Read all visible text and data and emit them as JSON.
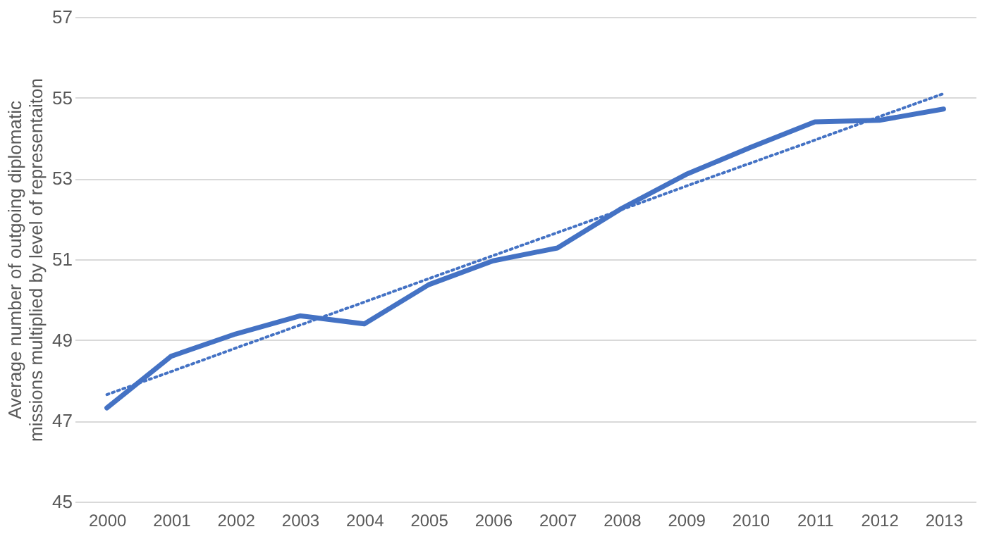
{
  "chart_data": {
    "type": "line",
    "ylabel": "Average number of outgoing diplomatic missions multiplied by level of representaiton",
    "categories": [
      "2000",
      "2001",
      "2002",
      "2003",
      "2004",
      "2005",
      "2006",
      "2007",
      "2008",
      "2009",
      "2010",
      "2011",
      "2012",
      "2013"
    ],
    "series": [
      {
        "color": "#4472c4",
        "values": [
          47.32,
          48.6,
          49.15,
          49.6,
          49.4,
          50.37,
          50.96,
          51.28,
          52.26,
          53.1,
          53.77,
          54.4,
          54.44,
          54.72
        ],
        "line_style": "solid"
      },
      {
        "type": "line",
        "color": "#4472c4",
        "values": [
          47.65,
          48.22,
          48.8,
          49.37,
          49.94,
          50.52,
          51.09,
          51.66,
          52.23,
          52.81,
          53.38,
          53.95,
          54.53,
          55.1
        ],
        "line_style": "dotted"
      }
    ],
    "ylim": [
      45,
      57
    ],
    "yticks": [
      45,
      47,
      49,
      51,
      53,
      55,
      57
    ],
    "grid": "y",
    "legend": false,
    "marker": "none"
  }
}
